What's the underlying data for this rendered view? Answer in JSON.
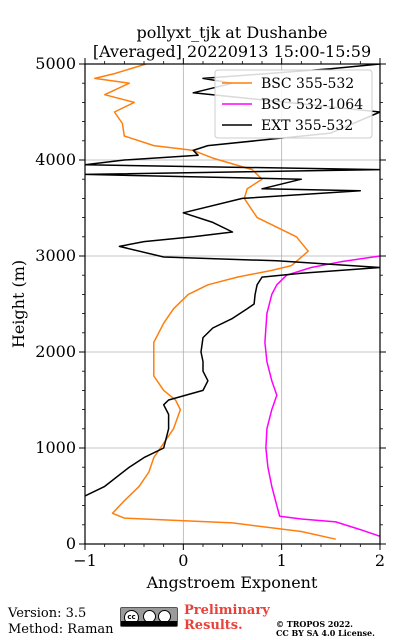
{
  "chart_data": {
    "type": "line",
    "title_line1": "pollyxt_tjk at Dushanbe",
    "title_line2": "[Averaged] 20220913 15:00-15:59",
    "xlabel": "Angstroem Exponent",
    "ylabel": "Height (m)",
    "xlim": [
      -1,
      2
    ],
    "ylim": [
      0,
      5000
    ],
    "x_ticks": [
      -1,
      0,
      1,
      2
    ],
    "x_tick_labels": [
      "−1",
      "0",
      "1",
      "2"
    ],
    "y_ticks": [
      0,
      1000,
      2000,
      3000,
      4000,
      5000
    ],
    "y_tick_labels": [
      "0",
      "1000",
      "2000",
      "3000",
      "4000",
      "5000"
    ],
    "grid": true,
    "legend_position": "top-right",
    "series": [
      {
        "name": "BSC 355-532",
        "color": "#ff7f0e",
        "points": [
          [
            1.55,
            50
          ],
          [
            1.2,
            130
          ],
          [
            0.5,
            220
          ],
          [
            -0.6,
            270
          ],
          [
            -0.72,
            320
          ],
          [
            -0.6,
            450
          ],
          [
            -0.45,
            600
          ],
          [
            -0.35,
            750
          ],
          [
            -0.3,
            900
          ],
          [
            -0.2,
            1050
          ],
          [
            -0.1,
            1200
          ],
          [
            -0.03,
            1400
          ],
          [
            -0.08,
            1500
          ],
          [
            -0.2,
            1600
          ],
          [
            -0.3,
            1750
          ],
          [
            -0.3,
            1900
          ],
          [
            -0.3,
            2100
          ],
          [
            -0.2,
            2300
          ],
          [
            -0.1,
            2450
          ],
          [
            0.05,
            2600
          ],
          [
            0.25,
            2700
          ],
          [
            0.55,
            2780
          ],
          [
            0.9,
            2850
          ],
          [
            1.1,
            2900
          ],
          [
            1.27,
            3050
          ],
          [
            1.15,
            3200
          ],
          [
            0.95,
            3300
          ],
          [
            0.75,
            3400
          ],
          [
            0.62,
            3600
          ],
          [
            0.65,
            3700
          ],
          [
            0.8,
            3800
          ],
          [
            0.7,
            3900
          ],
          [
            0.3,
            4020
          ],
          [
            0.1,
            4100
          ],
          [
            -0.3,
            4150
          ],
          [
            -0.6,
            4250
          ],
          [
            -0.62,
            4380
          ],
          [
            -0.7,
            4500
          ],
          [
            -0.5,
            4600
          ],
          [
            -0.8,
            4680
          ],
          [
            -0.55,
            4800
          ],
          [
            -0.9,
            4850
          ],
          [
            -0.7,
            4900
          ],
          [
            -0.38,
            5000
          ]
        ]
      },
      {
        "name": "BSC 532-1064",
        "color": "#ff00ff",
        "points": [
          [
            2.0,
            80
          ],
          [
            1.8,
            150
          ],
          [
            1.55,
            230
          ],
          [
            1.2,
            260
          ],
          [
            0.98,
            290
          ],
          [
            0.95,
            400
          ],
          [
            0.9,
            600
          ],
          [
            0.86,
            800
          ],
          [
            0.84,
            1000
          ],
          [
            0.85,
            1200
          ],
          [
            0.9,
            1400
          ],
          [
            0.95,
            1550
          ],
          [
            0.9,
            1700
          ],
          [
            0.85,
            1900
          ],
          [
            0.83,
            2100
          ],
          [
            0.85,
            2400
          ],
          [
            0.9,
            2600
          ],
          [
            0.95,
            2700
          ],
          [
            1.05,
            2800
          ],
          [
            1.3,
            2880
          ],
          [
            1.6,
            2940
          ],
          [
            2.0,
            3000
          ]
        ]
      },
      {
        "name": "EXT 355-532",
        "color": "#000000",
        "points": [
          [
            -1.0,
            500
          ],
          [
            -0.8,
            600
          ],
          [
            -0.55,
            800
          ],
          [
            -0.4,
            900
          ],
          [
            -0.2,
            1000
          ],
          [
            -0.15,
            1200
          ],
          [
            -0.15,
            1350
          ],
          [
            -0.2,
            1450
          ],
          [
            -0.15,
            1500
          ],
          [
            0.2,
            1600
          ],
          [
            0.25,
            1700
          ],
          [
            0.2,
            1800
          ],
          [
            0.2,
            1900
          ],
          [
            0.18,
            2000
          ],
          [
            0.2,
            2150
          ],
          [
            0.3,
            2250
          ],
          [
            0.5,
            2350
          ],
          [
            0.65,
            2450
          ],
          [
            0.72,
            2500
          ],
          [
            0.73,
            2600
          ],
          [
            0.75,
            2700
          ],
          [
            0.8,
            2780
          ],
          [
            1.2,
            2820
          ],
          [
            2.0,
            2880
          ],
          [
            0.95,
            2950
          ],
          [
            -0.2,
            2990
          ],
          [
            -0.65,
            3100
          ],
          [
            -0.4,
            3150
          ],
          [
            0.1,
            3200
          ],
          [
            0.5,
            3250
          ],
          [
            0.3,
            3350
          ],
          [
            0.0,
            3450
          ],
          [
            0.6,
            3600
          ],
          [
            1.8,
            3680
          ],
          [
            0.8,
            3700
          ],
          [
            1.2,
            3800
          ],
          [
            -1.0,
            3850
          ],
          [
            2.0,
            3900
          ],
          [
            -1.0,
            3950
          ],
          [
            -0.6,
            4000
          ],
          [
            0.15,
            4050
          ],
          [
            0.1,
            4100
          ],
          [
            0.25,
            4150
          ],
          [
            1.5,
            4280
          ],
          [
            2.0,
            4500
          ],
          [
            0.1,
            4700
          ],
          [
            0.5,
            4800
          ],
          [
            0.2,
            4850
          ],
          [
            1.5,
            4950
          ],
          [
            2.0,
            5000
          ]
        ]
      }
    ]
  },
  "footer": {
    "version": "Version: 3.5",
    "method": "Method: Raman",
    "license_badge": "cc BY SA",
    "preliminary_line1": "Preliminary",
    "preliminary_line2": "Results.",
    "copyright_line1": "© TROPOS 2022.",
    "copyright_line2": "CC BY SA 4.0 License."
  }
}
